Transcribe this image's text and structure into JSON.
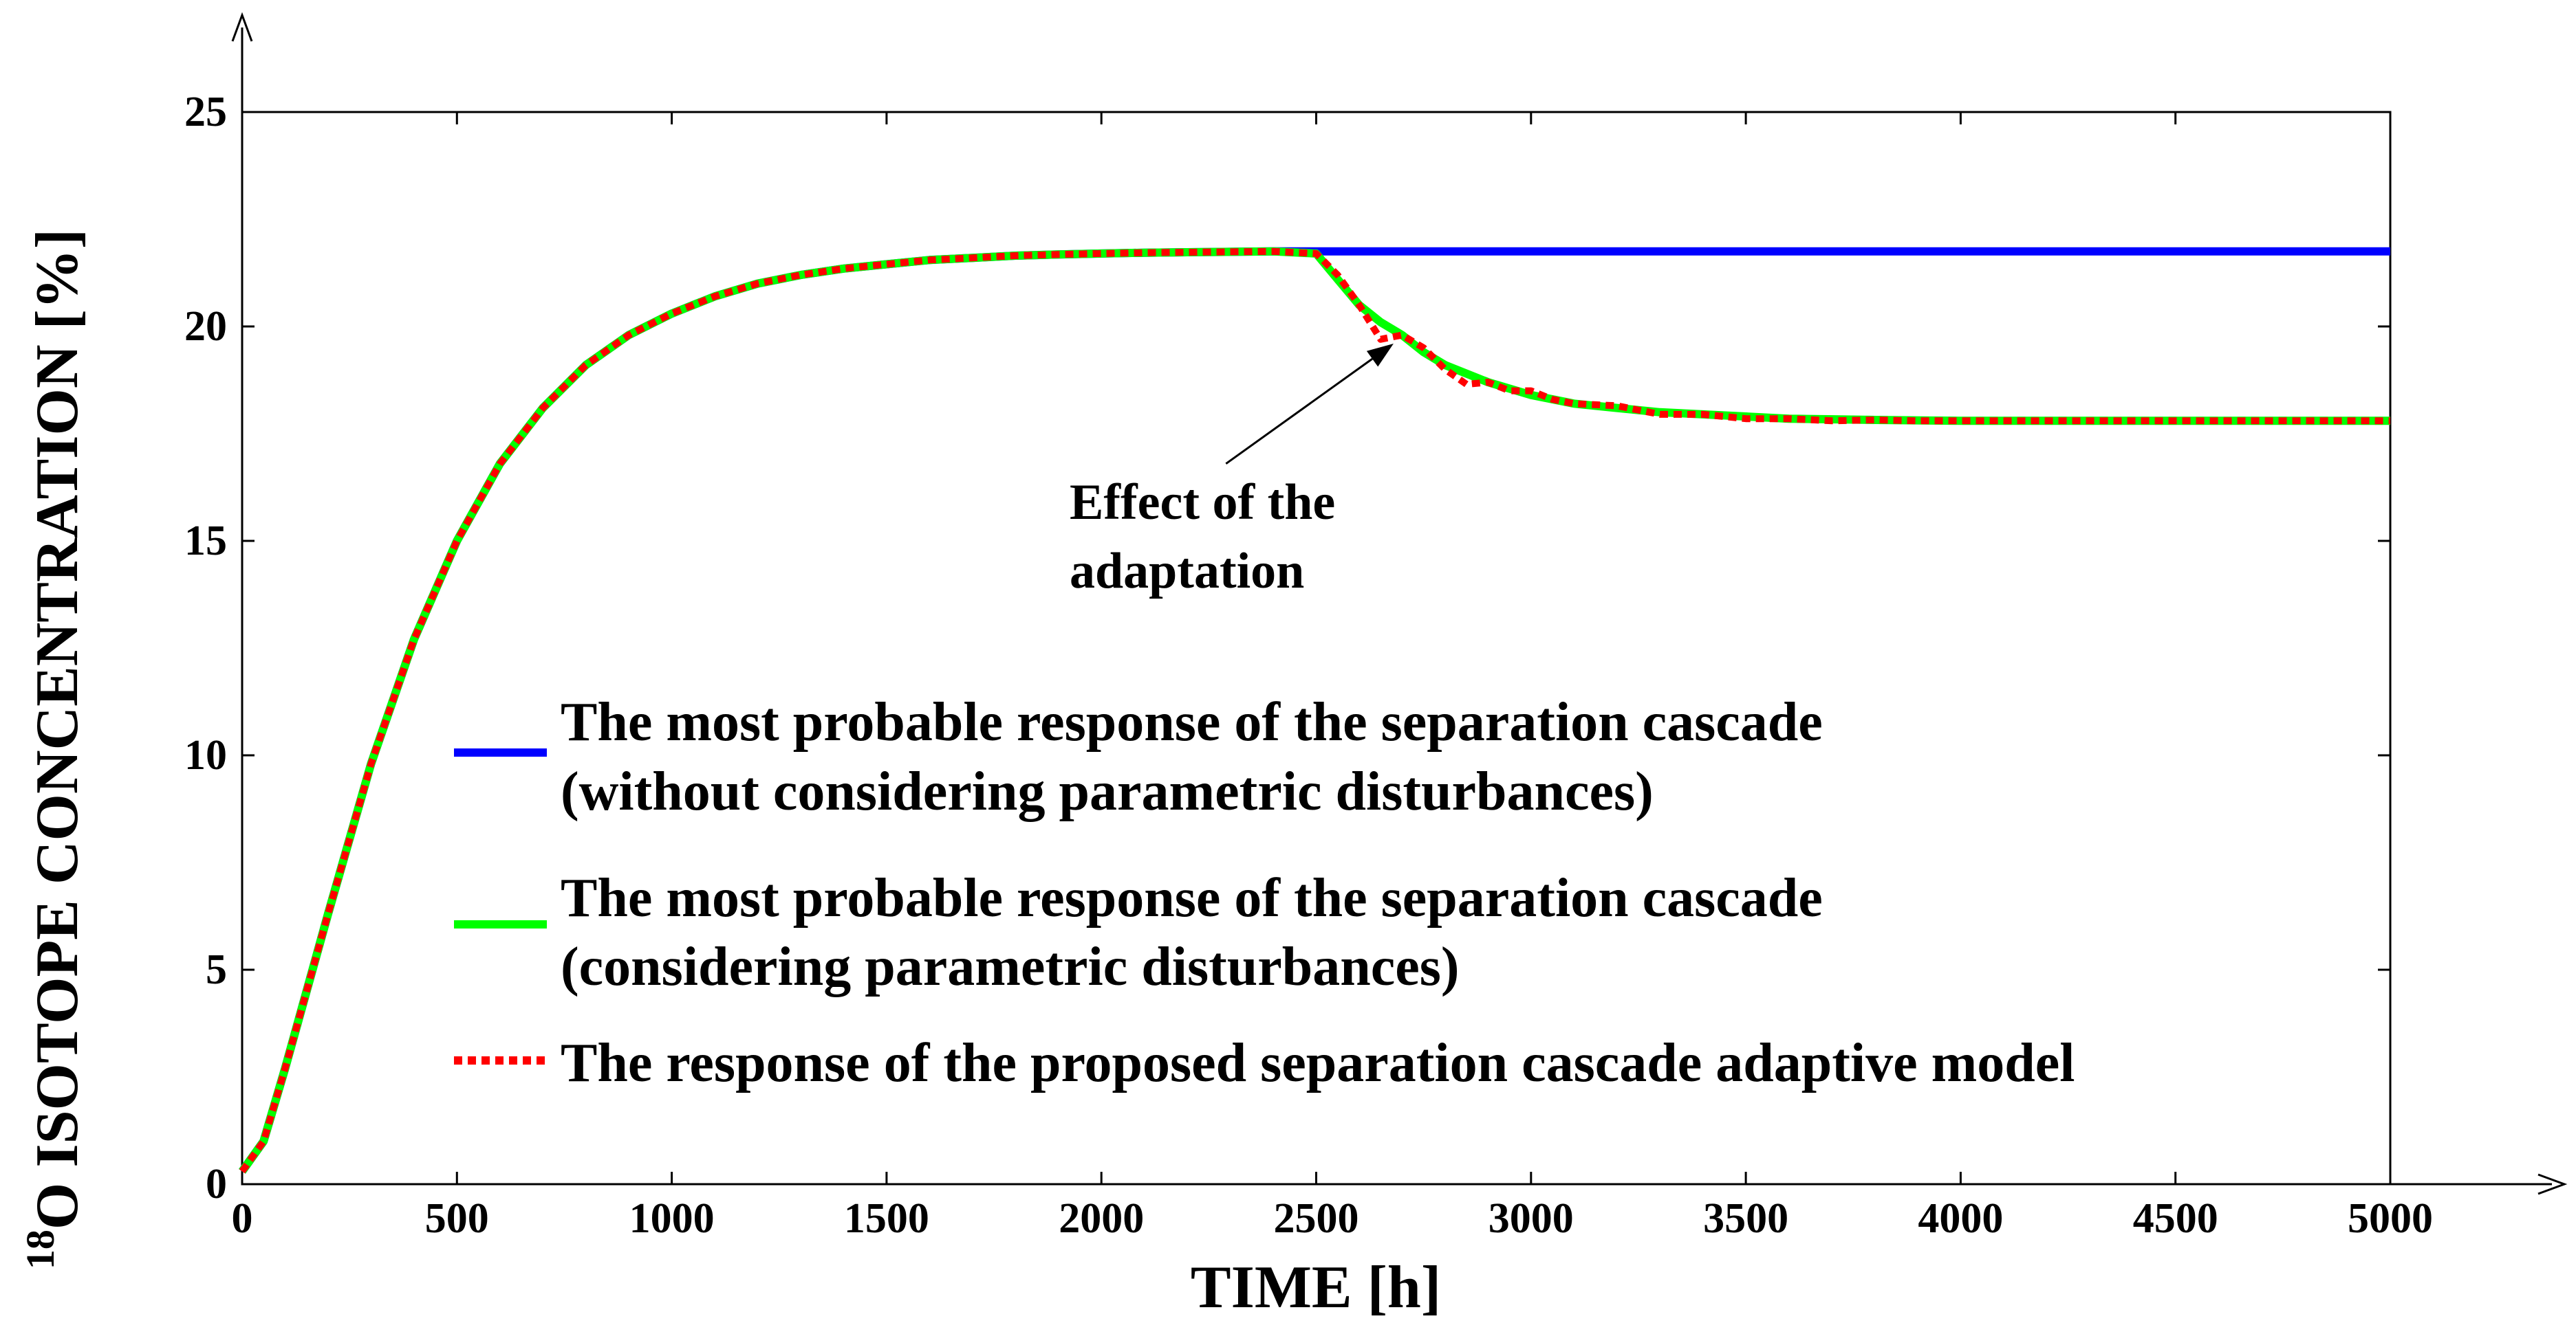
{
  "chart_data": {
    "type": "line",
    "title": "",
    "xlabel": "TIME [h]",
    "ylabel_superscript": "18",
    "ylabel": "O ISOTOPE CONCENTRATION [%]",
    "xlim": [
      0,
      5000
    ],
    "ylim": [
      0,
      25
    ],
    "xticks": [
      0,
      500,
      1000,
      1500,
      2000,
      2500,
      3000,
      3500,
      4000,
      4500,
      5000
    ],
    "yticks": [
      0,
      5,
      10,
      15,
      20,
      25
    ],
    "grid": false,
    "legend_position": "center",
    "series": [
      {
        "name": "The most probable response of the separation cascade (without considering parametric disturbances)",
        "legend_lines": [
          "The most probable response of the separation cascade",
          "(without considering parametric disturbances)"
        ],
        "color": "#0000ff",
        "style": "solid",
        "x": [
          0,
          50,
          100,
          200,
          300,
          400,
          500,
          600,
          700,
          800,
          900,
          1000,
          1100,
          1200,
          1300,
          1400,
          1500,
          1600,
          1700,
          1800,
          1900,
          2000,
          2100,
          2200,
          2300,
          2400,
          2500,
          3000,
          3500,
          4000,
          4500,
          5000
        ],
        "values": [
          0.3,
          1.0,
          2.7,
          6.3,
          9.8,
          12.7,
          15.0,
          16.8,
          18.1,
          19.1,
          19.8,
          20.3,
          20.7,
          21.0,
          21.2,
          21.35,
          21.45,
          21.55,
          21.6,
          21.65,
          21.68,
          21.7,
          21.72,
          21.73,
          21.74,
          21.75,
          21.75,
          21.75,
          21.75,
          21.75,
          21.75,
          21.75
        ]
      },
      {
        "name": "The most probable response of the separation cascade (considering parametric disturbances)",
        "legend_lines": [
          "The most probable response of the separation cascade",
          "(considering parametric disturbances)"
        ],
        "color": "#00ff00",
        "style": "solid",
        "x": [
          0,
          50,
          100,
          200,
          300,
          400,
          500,
          600,
          700,
          800,
          900,
          1000,
          1100,
          1200,
          1300,
          1400,
          1500,
          1600,
          1700,
          1800,
          1900,
          2000,
          2100,
          2200,
          2300,
          2400,
          2500,
          2550,
          2600,
          2650,
          2700,
          2750,
          2800,
          2900,
          3000,
          3100,
          3200,
          3300,
          3400,
          3500,
          3600,
          3800,
          4000,
          4500,
          5000
        ],
        "values": [
          0.3,
          1.0,
          2.7,
          6.3,
          9.8,
          12.7,
          15.0,
          16.8,
          18.1,
          19.1,
          19.8,
          20.3,
          20.7,
          21.0,
          21.2,
          21.35,
          21.45,
          21.55,
          21.6,
          21.65,
          21.68,
          21.7,
          21.72,
          21.73,
          21.74,
          21.75,
          21.7,
          21.1,
          20.5,
          20.1,
          19.8,
          19.4,
          19.1,
          18.7,
          18.4,
          18.2,
          18.1,
          18.0,
          17.95,
          17.9,
          17.85,
          17.82,
          17.8,
          17.8,
          17.8
        ]
      },
      {
        "name": "The response of the proposed separation cascade adaptive model",
        "legend_lines": [
          "The response of the proposed separation cascade adaptive model"
        ],
        "color": "#ff0000",
        "style": "dotted",
        "x": [
          0,
          50,
          100,
          200,
          300,
          400,
          500,
          600,
          700,
          800,
          900,
          1000,
          1100,
          1200,
          1300,
          1400,
          1500,
          1600,
          1700,
          1800,
          1900,
          2000,
          2100,
          2200,
          2300,
          2400,
          2500,
          2550,
          2600,
          2650,
          2700,
          2750,
          2800,
          2850,
          2900,
          2950,
          3000,
          3050,
          3100,
          3200,
          3300,
          3400,
          3500,
          3600,
          3700,
          3800,
          3900,
          4000,
          4500,
          5000
        ],
        "values": [
          0.3,
          1.0,
          2.7,
          6.3,
          9.8,
          12.7,
          15.0,
          16.8,
          18.1,
          19.1,
          19.8,
          20.3,
          20.7,
          21.0,
          21.2,
          21.35,
          21.45,
          21.55,
          21.6,
          21.65,
          21.68,
          21.7,
          21.72,
          21.73,
          21.74,
          21.75,
          21.7,
          21.2,
          20.5,
          19.7,
          19.8,
          19.5,
          19.0,
          18.65,
          18.7,
          18.5,
          18.5,
          18.3,
          18.2,
          18.15,
          17.95,
          17.95,
          17.85,
          17.85,
          17.8,
          17.82,
          17.8,
          17.8,
          17.8,
          17.8
        ]
      }
    ],
    "annotation": {
      "lines": [
        "Effect of the",
        "adaptation"
      ],
      "arrow_to": [
        2680,
        19.6
      ],
      "arrow_from": [
        2290,
        16.8
      ]
    }
  }
}
